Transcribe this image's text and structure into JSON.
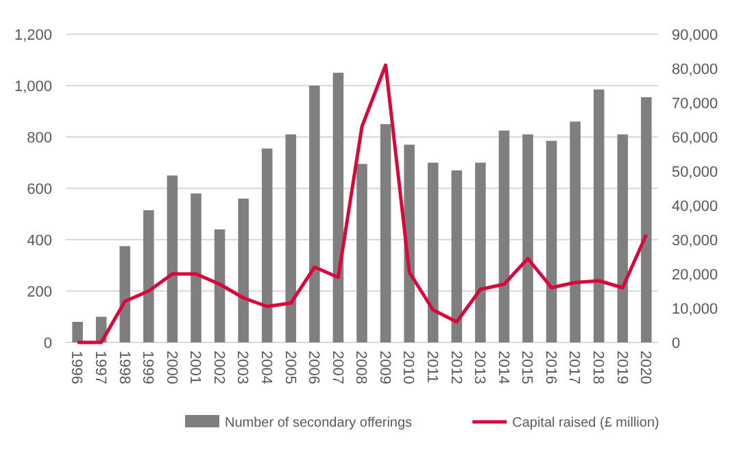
{
  "chart_data": {
    "type": "bar",
    "categories": [
      "1996",
      "1997",
      "1998",
      "1999",
      "2000",
      "2001",
      "2002",
      "2003",
      "2004",
      "2005",
      "2006",
      "2007",
      "2008",
      "2009",
      "2010",
      "2011",
      "2012",
      "2013",
      "2014",
      "2015",
      "2016",
      "2017",
      "2018",
      "2019",
      "2020"
    ],
    "series": [
      {
        "name": "Number of secondary offerings",
        "color": "#7f7f7f",
        "values": [
          80,
          100,
          375,
          515,
          650,
          580,
          440,
          560,
          755,
          810,
          1000,
          1050,
          695,
          850,
          770,
          700,
          670,
          700,
          825,
          810,
          785,
          860,
          985,
          810,
          955
        ]
      },
      {
        "name": "Capital raised (£ million)",
        "type": "line",
        "axis": "y2",
        "color": "#d9073a",
        "values": [
          0,
          0,
          12000,
          15000,
          20000,
          20000,
          17000,
          13000,
          10500,
          11500,
          22000,
          19000,
          63000,
          81000,
          20500,
          9500,
          6000,
          15500,
          17000,
          24500,
          16000,
          17500,
          18000,
          16000,
          31500
        ]
      }
    ],
    "ylim": [
      0,
      1200
    ],
    "yticks": [
      0,
      {
        "value": 200,
        "label": "200"
      },
      {
        "value": 400,
        "label": "400"
      },
      {
        "value": 600,
        "label": "600"
      },
      {
        "value": 800,
        "label": "800"
      },
      {
        "value": 1000,
        "label": "1,000"
      },
      {
        "value": 1200,
        "label": "1,200"
      }
    ],
    "y2lim": [
      0,
      90000
    ],
    "y2ticks": [
      0,
      {
        "value": 10000,
        "label": "10,000"
      },
      {
        "value": 20000,
        "label": "20,000"
      },
      {
        "value": 30000,
        "label": "30,000"
      },
      {
        "value": 40000,
        "label": "40,000"
      },
      {
        "value": 50000,
        "label": "50,000"
      },
      {
        "value": 60000,
        "label": "60,000"
      },
      {
        "value": 70000,
        "label": "70,000"
      },
      {
        "value": 80000,
        "label": "80,000"
      },
      {
        "value": 90000,
        "label": "90,000"
      }
    ],
    "grid": "y",
    "legend": "bottom",
    "marker": "none",
    "line_style": "solid"
  }
}
